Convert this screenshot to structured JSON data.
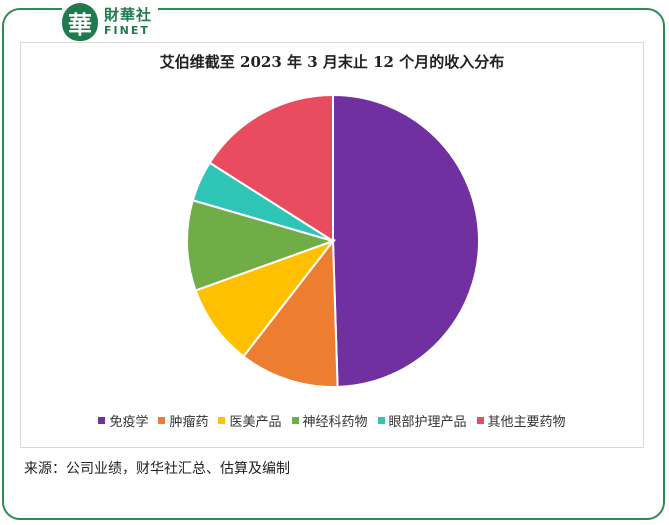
{
  "brand": {
    "logo_char": "華",
    "name_cn": "財華社",
    "name_en": "FINET",
    "color": "#1f7a4d"
  },
  "source_note": "来源：公司业绩，财华社汇总、估算及编制",
  "chart_data": {
    "type": "pie",
    "title": "艾伯维截至 2023 年 3 月末止 12 个月的收入分布",
    "legend_position": "bottom",
    "labels": [
      "免疫学",
      "肿瘤药",
      "医美产品",
      "神经科药物",
      "眼部护理产品",
      "其他主要药物"
    ],
    "values": [
      49.5,
      11.0,
      9.0,
      10.0,
      4.5,
      16.0
    ],
    "colors": [
      "#7030a0",
      "#ed7d31",
      "#ffc000",
      "#70ad47",
      "#2ec4b6",
      "#e84c5e"
    ]
  }
}
